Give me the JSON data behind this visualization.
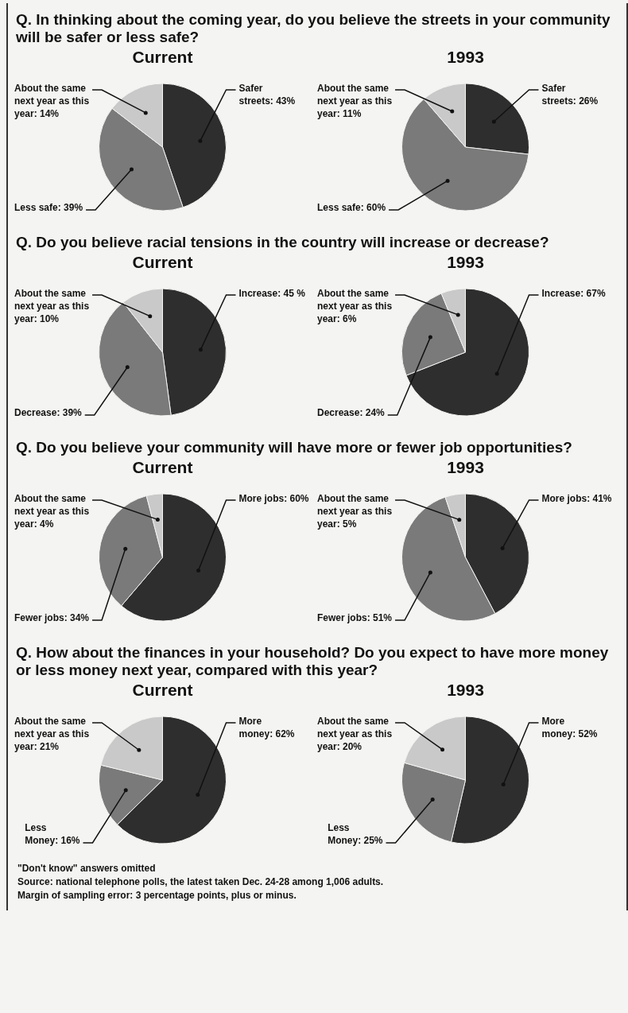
{
  "chart_data": [
    {
      "type": "pie",
      "title": "Q. In thinking about the coming year, do you believe the streets in your community will be safer or less safe?",
      "subtitle": "Current",
      "categories": [
        "Safer streets",
        "Less safe",
        "About the same next year as this year"
      ],
      "values": [
        43,
        39,
        14
      ],
      "value_labels": [
        "43%",
        "39%",
        "14%"
      ],
      "colors": [
        "#2e2e2e",
        "#7a7a7a",
        "#c9c9c9"
      ]
    },
    {
      "type": "pie",
      "subtitle": "1993",
      "categories": [
        "Safer streets",
        "Less safe",
        "About the same next year as this year"
      ],
      "values": [
        26,
        60,
        11
      ],
      "value_labels": [
        "26%",
        "60%",
        "11%"
      ],
      "colors": [
        "#2e2e2e",
        "#7a7a7a",
        "#c9c9c9"
      ]
    },
    {
      "type": "pie",
      "title": "Q. Do you believe racial tensions in the country will increase or decrease?",
      "subtitle": "Current",
      "categories": [
        "Increase",
        "Decrease",
        "About the same next year as this year"
      ],
      "values": [
        45,
        39,
        10
      ],
      "value_labels": [
        "45 %",
        "39%",
        "10%"
      ],
      "colors": [
        "#2e2e2e",
        "#7a7a7a",
        "#c9c9c9"
      ]
    },
    {
      "type": "pie",
      "subtitle": "1993",
      "categories": [
        "Increase",
        "Decrease",
        "About the same next year as this year"
      ],
      "values": [
        67,
        24,
        6
      ],
      "value_labels": [
        "67%",
        "24%",
        "6%"
      ],
      "colors": [
        "#2e2e2e",
        "#7a7a7a",
        "#c9c9c9"
      ]
    },
    {
      "type": "pie",
      "title": "Q. Do you believe your community will have more or fewer job opportunities?",
      "subtitle": "Current",
      "categories": [
        "More jobs",
        "Fewer jobs",
        "About the same next year as this year"
      ],
      "values": [
        60,
        34,
        4
      ],
      "value_labels": [
        "60%",
        "34%",
        "4%"
      ],
      "colors": [
        "#2e2e2e",
        "#7a7a7a",
        "#c9c9c9"
      ]
    },
    {
      "type": "pie",
      "subtitle": "1993",
      "categories": [
        "More jobs",
        "Fewer jobs",
        "About the same next year as this year"
      ],
      "values": [
        41,
        51,
        5
      ],
      "value_labels": [
        "41%",
        "51%",
        "5%"
      ],
      "colors": [
        "#2e2e2e",
        "#7a7a7a",
        "#c9c9c9"
      ]
    },
    {
      "type": "pie",
      "title": "Q. How about the finances in your household? Do you expect to have more money or less money next year, compared with this year?",
      "subtitle": "Current",
      "categories": [
        "More money",
        "Less Money",
        "About the same next year as this year"
      ],
      "values": [
        62,
        16,
        21
      ],
      "value_labels": [
        "62%",
        "16%",
        "21%"
      ],
      "colors": [
        "#2e2e2e",
        "#7a7a7a",
        "#c9c9c9"
      ]
    },
    {
      "type": "pie",
      "subtitle": "1993",
      "categories": [
        "More money",
        "Less Money",
        "About the same next year as this year"
      ],
      "values": [
        52,
        25,
        20
      ],
      "value_labels": [
        "52%",
        "25%",
        "20%"
      ],
      "colors": [
        "#2e2e2e",
        "#7a7a7a",
        "#c9c9c9"
      ],
      "annotations": [
        "\"Don't know\" answers omitted",
        "Source: national telephone polls, the latest taken Dec. 24-28 among 1,006 adults.",
        "Margin of sampling error: 3 percentage points, plus or minus."
      ]
    }
  ]
}
